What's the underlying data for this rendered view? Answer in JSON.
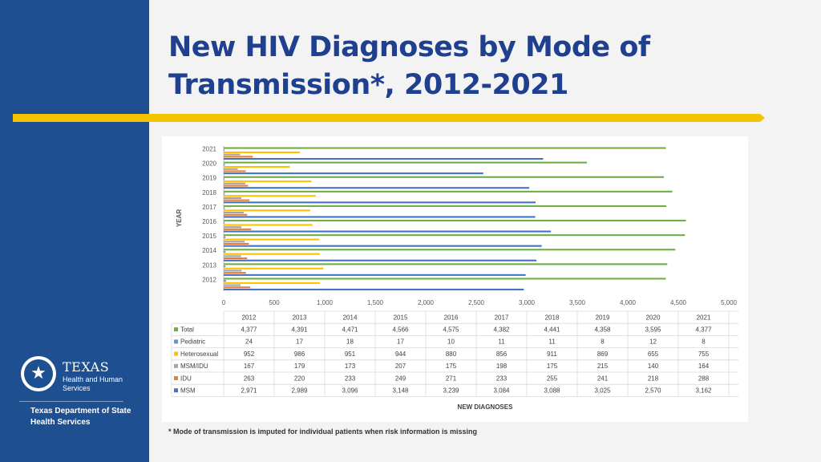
{
  "page": {
    "title": "New HIV Diagnoses by Mode of Transmission*, 2012-2021",
    "footnote": "* Mode of transmission is imputed for individual patients when risk information is missing"
  },
  "logo": {
    "texas": "TEXAS",
    "hhs_line1": "Health and Human",
    "hhs_line2": "Services",
    "dept_line1": "Texas Department of State",
    "dept_line2": "Health Services"
  },
  "colors": {
    "title": "#1f3f8f",
    "sidebar": "#1d4f91",
    "accent": "#f3c300"
  },
  "chart_data": {
    "type": "bar",
    "orientation": "horizontal",
    "categories": [
      "2012",
      "2013",
      "2014",
      "2015",
      "2016",
      "2017",
      "2018",
      "2019",
      "2020",
      "2021"
    ],
    "series": [
      {
        "name": "Total",
        "color": "#70ad47",
        "values": [
          4377,
          4391,
          4471,
          4566,
          4575,
          4382,
          4441,
          4358,
          3595,
          4377
        ],
        "labels": [
          "4,377",
          "4,391",
          "4,471",
          "4,566",
          "4,575",
          "4,382",
          "4,441",
          "4,358",
          "3,595",
          "4,377"
        ]
      },
      {
        "name": "Pediatric",
        "color": "#5b9bd5",
        "values": [
          24,
          17,
          18,
          17,
          10,
          11,
          11,
          8,
          12,
          8
        ],
        "labels": [
          "24",
          "17",
          "18",
          "17",
          "10",
          "11",
          "11",
          "8",
          "12",
          "8"
        ]
      },
      {
        "name": "Heterosexual",
        "color": "#ffc000",
        "values": [
          952,
          986,
          951,
          944,
          880,
          856,
          911,
          869,
          655,
          755
        ],
        "labels": [
          "952",
          "986",
          "951",
          "944",
          "880",
          "856",
          "911",
          "869",
          "655",
          "755"
        ]
      },
      {
        "name": "MSM/IDU",
        "color": "#a5a5a5",
        "values": [
          167,
          179,
          173,
          207,
          175,
          198,
          175,
          215,
          140,
          164
        ],
        "labels": [
          "167",
          "179",
          "173",
          "207",
          "175",
          "198",
          "175",
          "215",
          "140",
          "164"
        ]
      },
      {
        "name": "IDU",
        "color": "#ed7d31",
        "values": [
          263,
          220,
          233,
          249,
          271,
          233,
          255,
          241,
          218,
          288
        ],
        "labels": [
          "263",
          "220",
          "233",
          "249",
          "271",
          "233",
          "255",
          "241",
          "218",
          "288"
        ]
      },
      {
        "name": "MSM",
        "color": "#4472c4",
        "values": [
          2971,
          2989,
          3096,
          3148,
          3239,
          3084,
          3088,
          3025,
          2570,
          3162
        ],
        "labels": [
          "2,971",
          "2,989",
          "3,096",
          "3,148",
          "3,239",
          "3,084",
          "3,088",
          "3,025",
          "2,570",
          "3,162"
        ]
      }
    ],
    "xlabel": "NEW DIAGNOSES",
    "ylabel": "YEAR",
    "xlim": [
      0,
      5000
    ],
    "xticks": [
      0,
      500,
      1000,
      1500,
      2000,
      2500,
      3000,
      3500,
      4000,
      4500,
      5000
    ],
    "xtick_labels": [
      "0",
      "500",
      "1,000",
      "1,500",
      "2,000",
      "2,500",
      "3,000",
      "3,500",
      "4,000",
      "4,500",
      "5,000"
    ],
    "data_table": true,
    "legend": "in data table"
  }
}
